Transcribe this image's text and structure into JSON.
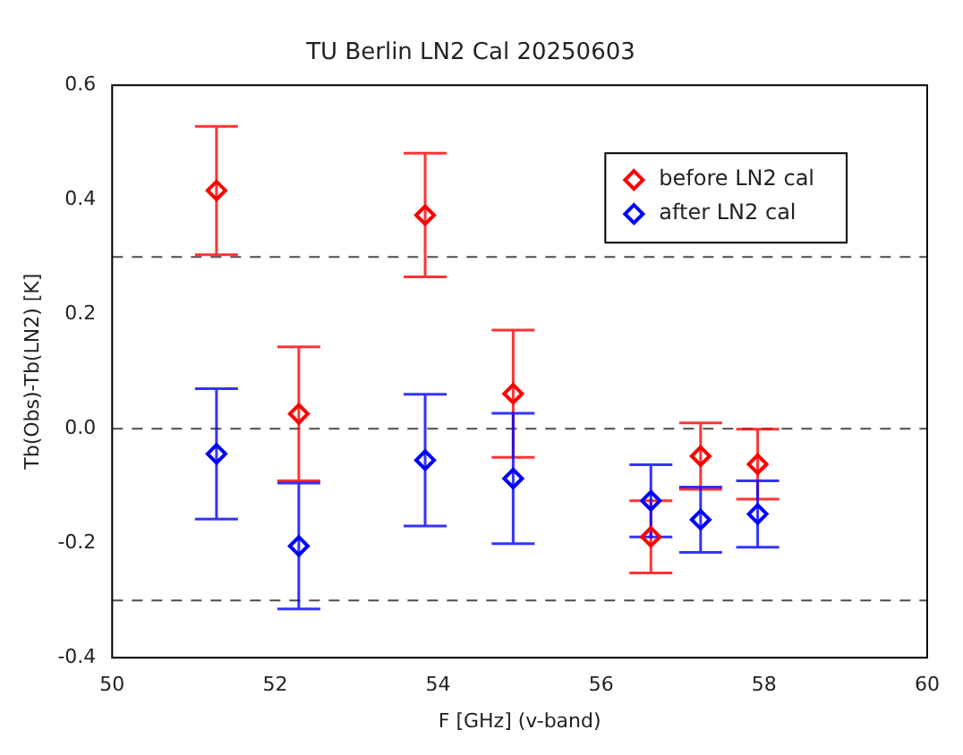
{
  "chart_data": {
    "type": "scatter",
    "title": "TU Berlin LN2 Cal 20250603",
    "xlabel": "F [GHz] (v-band)",
    "ylabel": "Tb(Obs)-Tb(LN2) [K]",
    "xlim": [
      50,
      60
    ],
    "xticks": [
      50,
      52,
      54,
      56,
      58,
      60
    ],
    "ylim": [
      -0.4,
      0.6
    ],
    "yticks": [
      {
        "value": -0.4,
        "label": "-0.4"
      },
      {
        "value": -0.2,
        "label": "-0.2"
      },
      {
        "value": 0,
        "label": "0.0"
      },
      {
        "value": 0.2,
        "label": "0.2"
      },
      {
        "value": 0.4,
        "label": "0.4"
      },
      {
        "value": 0.6,
        "label": "0.6"
      }
    ],
    "grid": false,
    "legend": "top right",
    "marker": "diamond",
    "ref_lines": [
      {
        "axis": "y",
        "value": 0.3,
        "line_style": "dashed",
        "color": "#000000"
      },
      {
        "axis": "y",
        "value": 0,
        "line_style": "dashed",
        "color": "#000000"
      },
      {
        "axis": "y",
        "value": -0.3,
        "line_style": "dashed",
        "color": "#000000"
      }
    ],
    "series": [
      {
        "name": "before LN2 cal",
        "color": "#ff0000",
        "x": [
          51.28,
          52.29,
          53.84,
          54.92,
          56.61,
          57.22,
          57.92
        ],
        "values": [
          0.416,
          0.026,
          0.373,
          0.061,
          -0.189,
          -0.048,
          -0.062
        ],
        "errors": [
          0.112,
          0.117,
          0.108,
          0.111,
          0.063,
          0.058,
          0.061
        ]
      },
      {
        "name": "after LN2 cal",
        "color": "#0000ff",
        "x": [
          51.28,
          52.29,
          53.84,
          54.92,
          56.61,
          57.22,
          57.92
        ],
        "values": [
          -0.044,
          -0.205,
          -0.055,
          -0.087,
          -0.126,
          -0.159,
          -0.149
        ],
        "errors": [
          0.114,
          0.11,
          0.115,
          0.114,
          0.063,
          0.057,
          0.058
        ]
      }
    ]
  }
}
